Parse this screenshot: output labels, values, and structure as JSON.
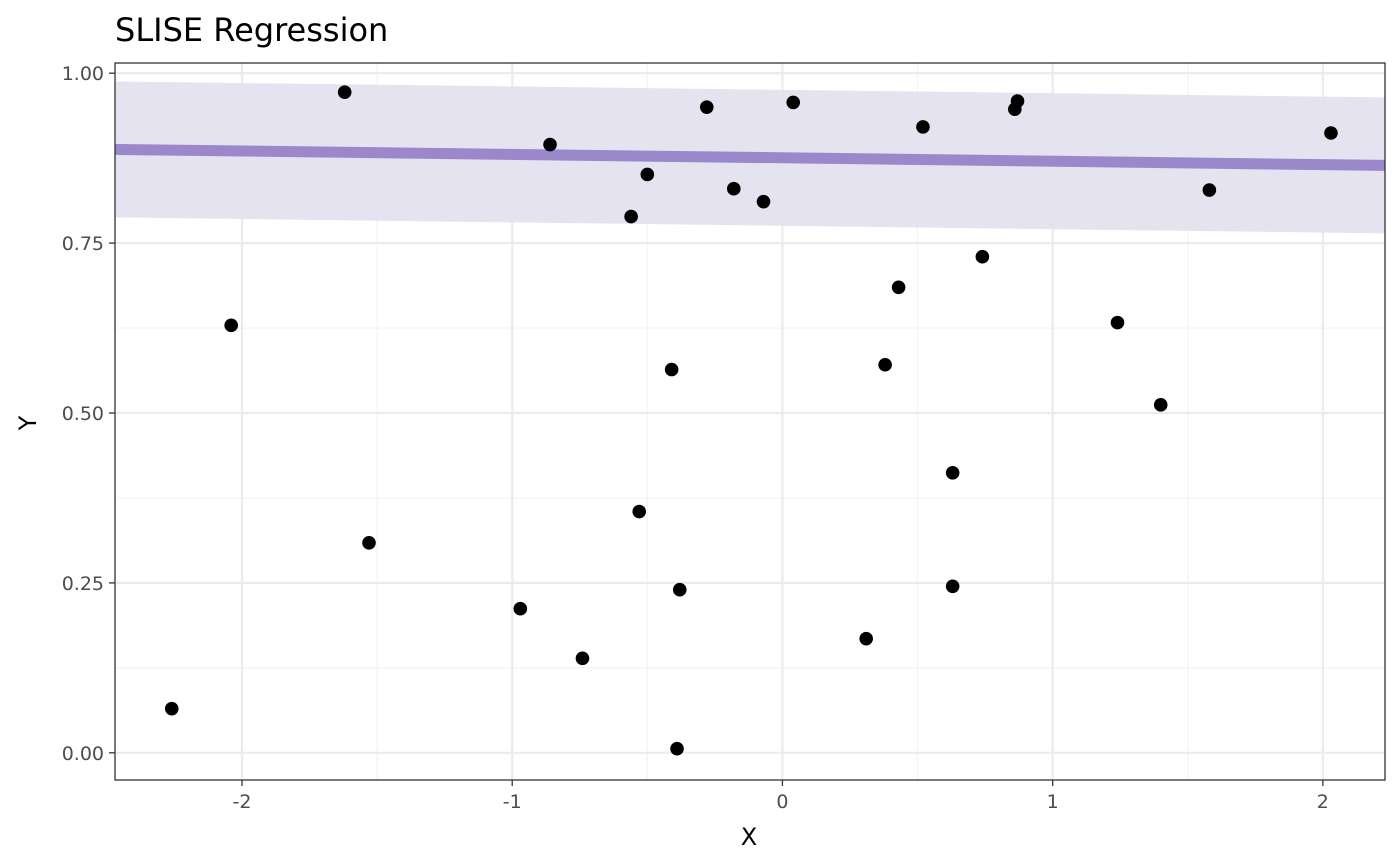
{
  "chart_data": {
    "type": "scatter",
    "title": "SLISE Regression",
    "xlabel": "X",
    "ylabel": "Y",
    "xlim": [
      -2.47,
      2.23
    ],
    "ylim": [
      -0.04,
      1.015
    ],
    "x_ticks": [
      -2,
      -1,
      0,
      1,
      2
    ],
    "x_tick_labels": [
      "-2",
      "-1",
      "0",
      "1",
      "2"
    ],
    "y_ticks": [
      0.0,
      0.25,
      0.5,
      0.75,
      1.0
    ],
    "y_tick_labels": [
      "0.00",
      "0.25",
      "0.50",
      "0.75",
      "1.00"
    ],
    "grid": true,
    "points": [
      {
        "x": -2.26,
        "y": 0.065
      },
      {
        "x": -2.04,
        "y": 0.629
      },
      {
        "x": -1.62,
        "y": 0.972
      },
      {
        "x": -1.53,
        "y": 0.309
      },
      {
        "x": -0.97,
        "y": 0.212
      },
      {
        "x": -0.86,
        "y": 0.895
      },
      {
        "x": -0.74,
        "y": 0.139
      },
      {
        "x": -0.56,
        "y": 0.789
      },
      {
        "x": -0.53,
        "y": 0.355
      },
      {
        "x": -0.5,
        "y": 0.851
      },
      {
        "x": -0.41,
        "y": 0.564
      },
      {
        "x": -0.39,
        "y": 0.006
      },
      {
        "x": -0.38,
        "y": 0.24
      },
      {
        "x": -0.28,
        "y": 0.95
      },
      {
        "x": -0.18,
        "y": 0.83
      },
      {
        "x": -0.07,
        "y": 0.811
      },
      {
        "x": 0.04,
        "y": 0.957
      },
      {
        "x": 0.31,
        "y": 0.168
      },
      {
        "x": 0.38,
        "y": 0.571
      },
      {
        "x": 0.43,
        "y": 0.685
      },
      {
        "x": 0.52,
        "y": 0.921
      },
      {
        "x": 0.63,
        "y": 0.412
      },
      {
        "x": 0.63,
        "y": 0.245
      },
      {
        "x": 0.74,
        "y": 0.73
      },
      {
        "x": 0.86,
        "y": 0.947
      },
      {
        "x": 0.87,
        "y": 0.959
      },
      {
        "x": 1.24,
        "y": 0.633
      },
      {
        "x": 1.4,
        "y": 0.512
      },
      {
        "x": 1.58,
        "y": 0.828
      },
      {
        "x": 2.03,
        "y": 0.912
      }
    ],
    "regression_line": {
      "intercept": 0.8755,
      "slope": -0.005,
      "band_halfwidth": 0.1
    },
    "colors": {
      "line": "#9b88cb",
      "band": "#e3e1ee",
      "points": "#000000",
      "grid_major": "#ebebeb",
      "grid_minor": "#f3f3f3",
      "panel_border": "#333333",
      "tick_label": "#4d4d4d"
    }
  }
}
